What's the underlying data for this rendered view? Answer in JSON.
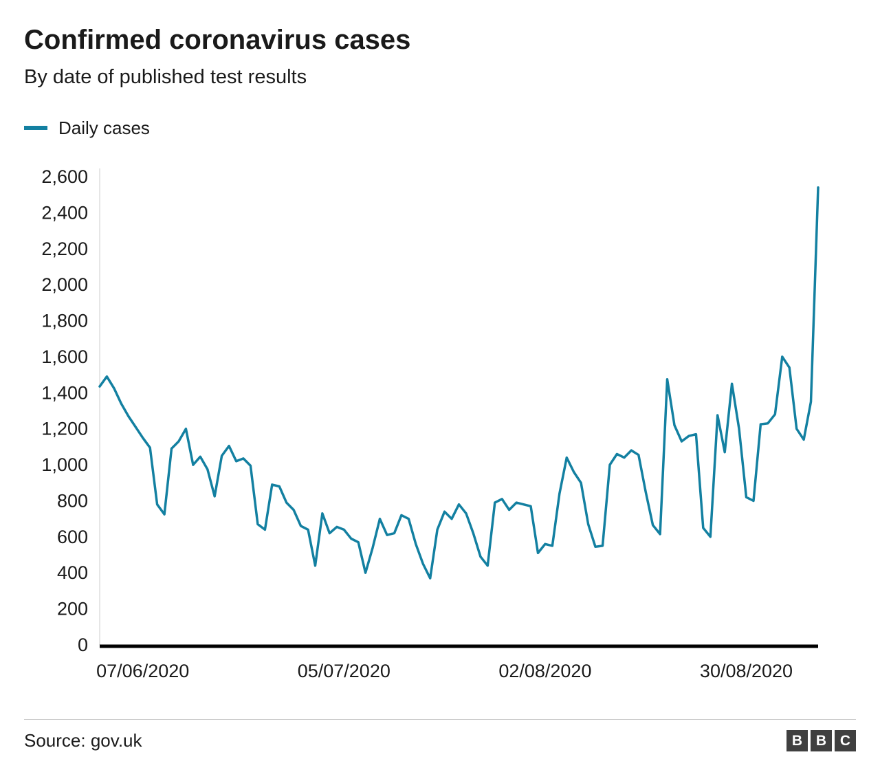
{
  "header": {
    "title": "Confirmed coronavirus cases",
    "subtitle": "By date of published test results"
  },
  "legend": {
    "label": "Daily cases",
    "color": "#1380A1"
  },
  "footer": {
    "source": "Source: gov.uk",
    "logo_letters": {
      "b1": "B",
      "b2": "B",
      "c": "C"
    }
  },
  "chart_data": {
    "type": "line",
    "title": "Confirmed coronavirus cases",
    "subtitle": "By date of published test results",
    "xlabel": "",
    "ylabel": "",
    "grid": false,
    "legend_position": "top-left",
    "ylim": [
      0,
      2600
    ],
    "y_tick_step": 200,
    "y_ticks": [
      0,
      200,
      400,
      600,
      800,
      1000,
      1200,
      1400,
      1600,
      1800,
      2000,
      2200,
      2400,
      2600
    ],
    "y_tick_labels": [
      "0",
      "200",
      "400",
      "600",
      "800",
      "1,000",
      "1,200",
      "1,400",
      "1,600",
      "1,800",
      "2,000",
      "2,200",
      "2,400",
      "2,600"
    ],
    "x_tick_labels": [
      "07/06/2020",
      "05/07/2020",
      "02/08/2020",
      "30/08/2020"
    ],
    "x_tick_indices": [
      6,
      34,
      62,
      90
    ],
    "series": [
      {
        "name": "Daily cases",
        "color": "#1380A1",
        "values": [
          1435,
          1490,
          1425,
          1340,
          1270,
          1210,
          1150,
          1095,
          780,
          725,
          1090,
          1130,
          1200,
          1000,
          1045,
          975,
          825,
          1050,
          1105,
          1020,
          1035,
          995,
          670,
          640,
          890,
          880,
          790,
          750,
          660,
          640,
          440,
          730,
          620,
          655,
          640,
          590,
          570,
          400,
          540,
          700,
          610,
          620,
          720,
          700,
          560,
          450,
          370,
          640,
          740,
          700,
          780,
          730,
          620,
          490,
          440,
          790,
          810,
          750,
          790,
          780,
          770,
          510,
          560,
          550,
          840,
          1040,
          960,
          900,
          670,
          545,
          550,
          1000,
          1060,
          1040,
          1080,
          1055,
          850,
          665,
          615,
          1475,
          1220,
          1130,
          1160,
          1170,
          650,
          600,
          1275,
          1070,
          1450,
          1200,
          820,
          800,
          1225,
          1230,
          1280,
          1600,
          1540,
          1200,
          1140,
          1350,
          2540
        ]
      }
    ]
  }
}
